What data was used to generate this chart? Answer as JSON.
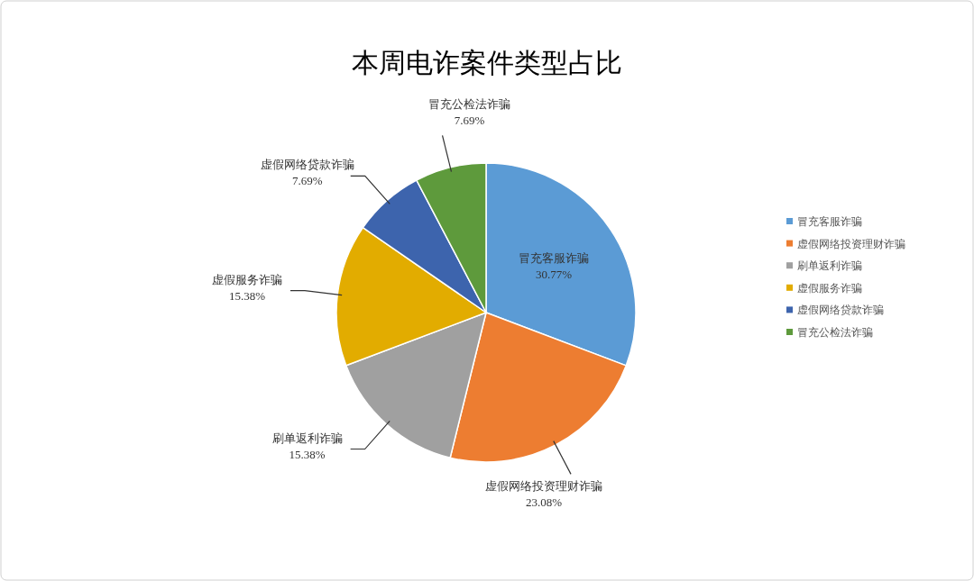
{
  "chart_data": {
    "type": "pie",
    "title": "本周电诈案件类型占比",
    "categories": [
      "冒充客服诈骗",
      "虚假网络投资理财诈骗",
      "刷单返利诈骗",
      "虚假服务诈骗",
      "虚假网络贷款诈骗",
      "冒充公检法诈骗"
    ],
    "values": [
      30.77,
      23.08,
      15.38,
      15.38,
      7.69,
      7.69
    ],
    "colors": [
      "#5b9bd5",
      "#ed7d31",
      "#a0a0a0",
      "#e2ac00",
      "#3d64ad",
      "#5e9a3c"
    ],
    "value_labels": [
      "30.77%",
      "23.08%",
      "15.38%",
      "15.38%",
      "7.69%",
      "7.69%"
    ],
    "legend": "right"
  }
}
